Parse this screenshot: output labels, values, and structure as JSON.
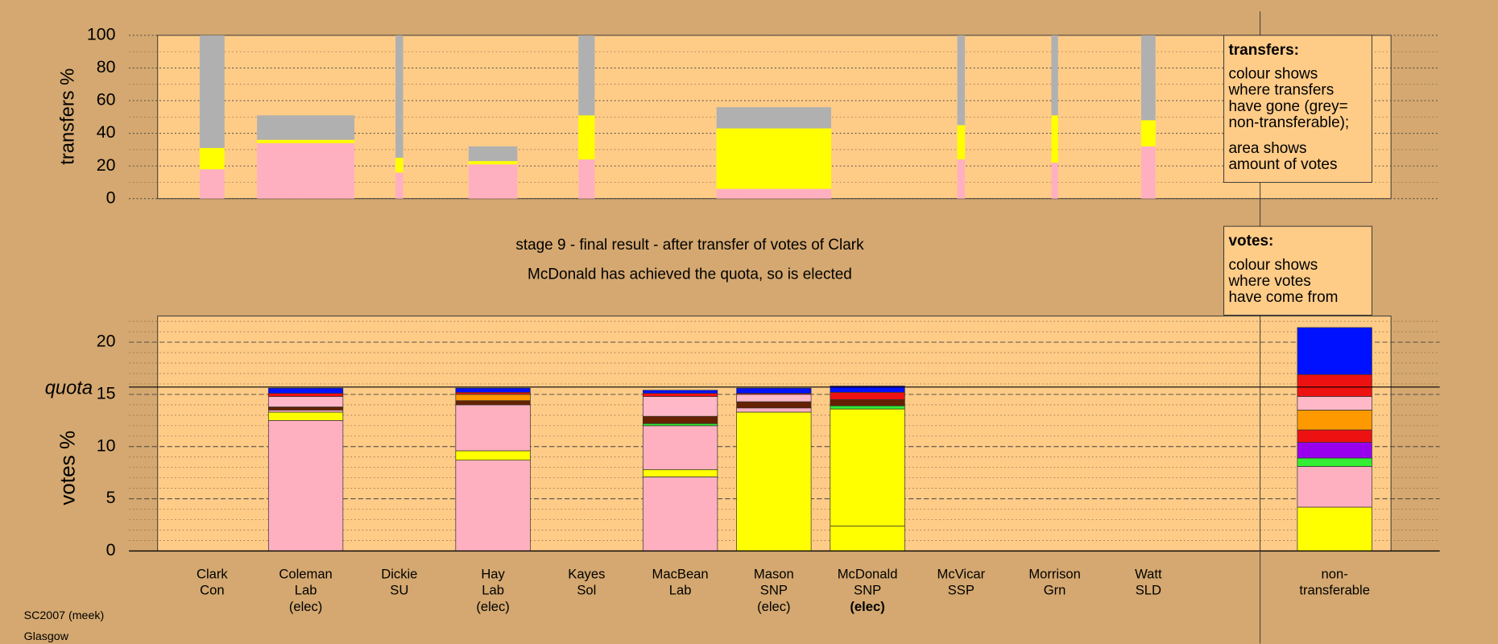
{
  "chart_data": [
    {
      "type": "bar",
      "stacked": true,
      "ylabel": "transfers %",
      "ylim": [
        0,
        100
      ],
      "yticks": [
        0,
        20,
        40,
        60,
        80,
        100
      ],
      "minor_grid_step": 10,
      "bar_widths": [
        26,
        102,
        8,
        51,
        17,
        null,
        120,
        null,
        8,
        7,
        15,
        null
      ],
      "series": [
        {
          "color": "#ffb0c0",
          "values": [
            18,
            34,
            16,
            21,
            24,
            null,
            6,
            null,
            24,
            22,
            32,
            null
          ]
        },
        {
          "color": "#ffff00",
          "values": [
            13,
            2,
            9,
            2,
            27,
            null,
            37,
            null,
            21,
            29,
            16,
            null
          ]
        },
        {
          "color": "#b0b0b0",
          "values": [
            69,
            15,
            75,
            9,
            49,
            null,
            13,
            null,
            55,
            49,
            52,
            null
          ]
        }
      ]
    },
    {
      "type": "bar",
      "stacked": true,
      "ylabel": "votes %",
      "ylim": [
        0,
        22.5
      ],
      "yticks": [
        0,
        5,
        10,
        15,
        20
      ],
      "minor_grid_step": 1,
      "quota": {
        "value": 15.7,
        "label": "quota"
      },
      "highlight": 7,
      "categories": [
        [
          "Clark",
          "Con"
        ],
        [
          "Coleman",
          "Lab",
          "(elec)"
        ],
        [
          "Dickie",
          "SU"
        ],
        [
          "Hay",
          "Lab",
          "(elec)"
        ],
        [
          "Kayes",
          "Sol"
        ],
        [
          "MacBean",
          "Lab"
        ],
        [
          "Mason",
          "SNP",
          "(elec)"
        ],
        [
          "McDonald",
          "SNP",
          "(elec)"
        ],
        [
          "McVicar",
          "SSP"
        ],
        [
          "Morrison",
          "Grn"
        ],
        [
          "Watt",
          "SLD"
        ],
        [
          "non-",
          "transferable"
        ]
      ],
      "series": [
        {
          "color": "#ffb0c0",
          "values": [
            0,
            12.5,
            0,
            8.7,
            0,
            7.1,
            0,
            0,
            0,
            0,
            0,
            0
          ]
        },
        {
          "color": "#ffff00",
          "values": [
            0,
            0.8,
            0,
            0.9,
            0,
            0.7,
            13.3,
            2.4,
            0,
            0,
            0,
            4.2
          ]
        },
        {
          "color": "#ffff00",
          "values": [
            0,
            0,
            0,
            0,
            0,
            0,
            0,
            11.2,
            0,
            0,
            0,
            0
          ]
        },
        {
          "color": "#ffb0c0",
          "values": [
            0,
            0.2,
            0,
            4.4,
            0,
            4.2,
            0.4,
            0,
            0,
            0,
            0,
            3.9
          ]
        },
        {
          "color": "#33ee33",
          "values": [
            0,
            0,
            0,
            0,
            0,
            0.2,
            0,
            0.3,
            0,
            0,
            0,
            0.8
          ]
        },
        {
          "color": "#9900ee",
          "values": [
            0,
            0,
            0,
            0,
            0,
            0,
            0,
            0,
            0,
            0,
            0,
            1.5
          ]
        },
        {
          "color": "#662200",
          "values": [
            0,
            0.3,
            0,
            0.4,
            0,
            0.7,
            0.6,
            0.6,
            0,
            0,
            0,
            0
          ]
        },
        {
          "color": "#ee1111",
          "values": [
            0,
            0,
            0,
            0,
            0,
            0,
            0,
            0,
            0,
            0,
            0,
            1.2
          ]
        },
        {
          "color": "#ff9900",
          "values": [
            0,
            0,
            0,
            0.6,
            0,
            0,
            0,
            0,
            0,
            0,
            0,
            1.9
          ]
        },
        {
          "color": "#ffb8c8",
          "values": [
            0,
            1.0,
            0,
            0,
            0,
            1.9,
            0.7,
            0,
            0,
            0,
            0,
            1.3
          ]
        },
        {
          "color": "#ee1111",
          "values": [
            0,
            0.3,
            0,
            0.2,
            0,
            0.3,
            0.1,
            0.7,
            0,
            0,
            0,
            2.1
          ]
        },
        {
          "color": "#0011ff",
          "values": [
            0,
            0.5,
            0,
            0.4,
            0,
            0.3,
            0.5,
            0.6,
            0,
            0,
            0,
            4.5
          ]
        }
      ]
    }
  ],
  "stage_lines": [
    "stage 9 - final result - after transfer of votes of Clark",
    "McDonald has achieved the quota, so is elected"
  ],
  "legend_transfers": {
    "title": "transfers:",
    "lines": [
      "colour shows",
      "where transfers",
      "have gone (grey=",
      "non-transferable);",
      "area shows",
      "amount of votes"
    ]
  },
  "legend_votes": {
    "title": "votes:",
    "lines": [
      "colour shows",
      "where votes",
      "have come from"
    ]
  },
  "footer": [
    "SC2007 (meek)",
    "Glasgow"
  ]
}
